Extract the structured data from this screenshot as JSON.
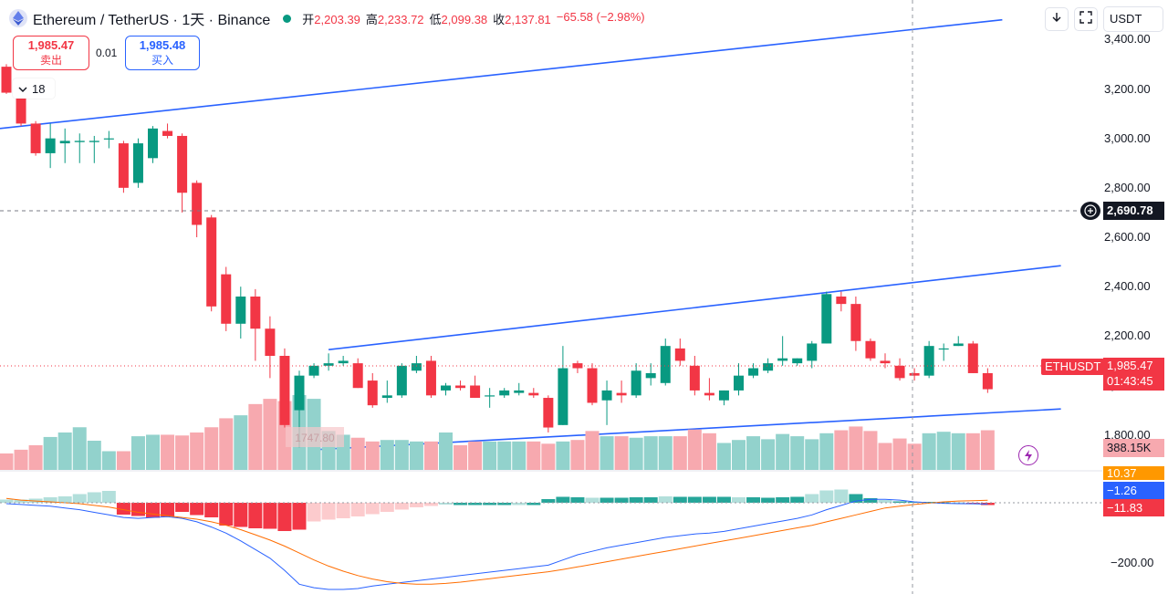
{
  "header": {
    "title": "Ethereum / TetherUS · 1天 · Binance",
    "open_label": "开",
    "open": "2,203.39",
    "high_label": "高",
    "high": "2,233.72",
    "low_label": "低",
    "low": "2,099.38",
    "close_label": "收",
    "close": "2,137.81",
    "change": "−65.58 (−2.98%)"
  },
  "trade": {
    "sell_price": "1,985.47",
    "sell_label": "卖出",
    "qty": "0.01",
    "buy_price": "1,985.48",
    "buy_label": "买入"
  },
  "collapse_count": "18",
  "toolbar": {
    "currency": "USDT"
  },
  "price_axis": {
    "ticks": [
      "3,400.00",
      "3,200.00",
      "3,000.00",
      "2,800.00",
      "2,600.00",
      "2,400.00",
      "2,200.00",
      "2,000.00",
      "1,800.00"
    ],
    "tick_values": [
      3400,
      3200,
      3000,
      2800,
      2600,
      2400,
      2200,
      2000,
      1800
    ],
    "crosshair_price": "2,690.78",
    "last_price": "1,985.47",
    "countdown": "01:43:45",
    "symbol_tag": "ETHUSDT",
    "low_marker": "1747.80"
  },
  "volume": {
    "last_label": "388.15K"
  },
  "macd": {
    "label_orange": "10.37",
    "label_blue": "−1.26",
    "label_red": "−11.83",
    "tick": "−200.00"
  },
  "colors": {
    "up": "#089981",
    "down": "#f23645",
    "trend": "#2962ff",
    "signal": "#ff6d00"
  },
  "chart_data": {
    "type": "candlestick",
    "symbol": "ETHUSDT",
    "exchange": "Binance",
    "interval": "1天",
    "ylim": [
      1640,
      3560
    ],
    "candles": [
      [
        3290,
        3300,
        3180,
        3185
      ],
      [
        3180,
        3200,
        3050,
        3060
      ],
      [
        3060,
        3070,
        2930,
        2940
      ],
      [
        2940,
        3060,
        2880,
        3000
      ],
      [
        2980,
        3040,
        2900,
        2990
      ],
      [
        2985,
        3020,
        2900,
        2990
      ],
      [
        2985,
        3010,
        2900,
        2990
      ],
      [
        3000,
        3030,
        2960,
        3000
      ],
      [
        2980,
        2990,
        2780,
        2800
      ],
      [
        2820,
        3000,
        2800,
        2980
      ],
      [
        2920,
        3050,
        2900,
        3040
      ],
      [
        3030,
        3060,
        3000,
        3010
      ],
      [
        3010,
        3020,
        2700,
        2780
      ],
      [
        2820,
        2830,
        2600,
        2650
      ],
      [
        2680,
        2690,
        2300,
        2320
      ],
      [
        2450,
        2480,
        2220,
        2250
      ],
      [
        2250,
        2400,
        2190,
        2360
      ],
      [
        2360,
        2390,
        2100,
        2230
      ],
      [
        2230,
        2280,
        2030,
        2120
      ],
      [
        2120,
        2150,
        1830,
        1840
      ],
      [
        1900,
        2060,
        1750,
        2040
      ],
      [
        2040,
        2090,
        2030,
        2080
      ],
      [
        2080,
        2130,
        2060,
        2090
      ],
      [
        2090,
        2120,
        2080,
        2100
      ],
      [
        2090,
        2110,
        1990,
        1990
      ],
      [
        2020,
        2050,
        1910,
        1920
      ],
      [
        1950,
        2020,
        1930,
        1960
      ],
      [
        1960,
        2090,
        1950,
        2080
      ],
      [
        2060,
        2120,
        2050,
        2090
      ],
      [
        2100,
        2120,
        1950,
        1960
      ],
      [
        1980,
        2010,
        1960,
        2000
      ],
      [
        2000,
        2020,
        1980,
        1990
      ],
      [
        2000,
        2040,
        1950,
        1950
      ],
      [
        1960,
        1990,
        1910,
        1960
      ],
      [
        1960,
        1990,
        1950,
        1980
      ],
      [
        1970,
        2010,
        1960,
        1980
      ],
      [
        1970,
        1990,
        1950,
        1960
      ],
      [
        1950,
        1960,
        1810,
        1830
      ],
      [
        1840,
        2160,
        1840,
        2070
      ],
      [
        2090,
        2100,
        2050,
        2070
      ],
      [
        2070,
        2090,
        1920,
        1930
      ],
      [
        1940,
        2020,
        1840,
        1980
      ],
      [
        1970,
        2020,
        1930,
        1960
      ],
      [
        1960,
        2090,
        1950,
        2060
      ],
      [
        2030,
        2090,
        2000,
        2050
      ],
      [
        2010,
        2190,
        2000,
        2160
      ],
      [
        2150,
        2190,
        2080,
        2100
      ],
      [
        2080,
        2120,
        1960,
        1980
      ],
      [
        1970,
        2030,
        1940,
        1960
      ],
      [
        1940,
        1980,
        1920,
        1980
      ],
      [
        1980,
        2090,
        1960,
        2040
      ],
      [
        2040,
        2090,
        2030,
        2070
      ],
      [
        2060,
        2110,
        2050,
        2090
      ],
      [
        2100,
        2200,
        2080,
        2110
      ],
      [
        2090,
        2110,
        2080,
        2110
      ],
      [
        2100,
        2180,
        2070,
        2170
      ],
      [
        2170,
        2380,
        2170,
        2370
      ],
      [
        2360,
        2380,
        2300,
        2330
      ],
      [
        2330,
        2360,
        2140,
        2180
      ],
      [
        2180,
        2190,
        2100,
        2110
      ],
      [
        2100,
        2130,
        2070,
        2090
      ],
      [
        2080,
        2110,
        2020,
        2030
      ],
      [
        2050,
        2070,
        2020,
        2040
      ],
      [
        2040,
        2180,
        2030,
        2160
      ],
      [
        2150,
        2170,
        2100,
        2150
      ],
      [
        2160,
        2200,
        2160,
        2170
      ],
      [
        2170,
        2180,
        2050,
        2050
      ],
      [
        2050,
        2070,
        1970,
        1985
      ]
    ],
    "volumes": [
      22,
      27,
      33,
      44,
      50,
      57,
      39,
      25,
      25,
      45,
      47,
      47,
      46,
      50,
      57,
      69,
      73,
      88,
      95,
      92,
      100,
      95,
      52,
      47,
      43,
      38,
      40,
      40,
      38,
      38,
      50,
      33,
      38,
      38,
      38,
      38,
      38,
      35,
      38,
      40,
      52,
      45,
      45,
      43,
      45,
      45,
      45,
      54,
      49,
      36,
      40,
      45,
      41,
      48,
      45,
      41,
      49,
      53,
      58,
      52,
      36,
      42,
      35,
      49,
      51,
      49,
      49,
      53
    ],
    "macd_hist": [
      7,
      7,
      9,
      12,
      14,
      19,
      23,
      26,
      26,
      29,
      33,
      30,
      20,
      27,
      32,
      50,
      53,
      56,
      57,
      62,
      59,
      41,
      37,
      34,
      30,
      25,
      20,
      15,
      10,
      7,
      4,
      5,
      5,
      5,
      5,
      5,
      5,
      8,
      13,
      12,
      11,
      11,
      11,
      12,
      12,
      14,
      13,
      13,
      13,
      13,
      12,
      12,
      11,
      12,
      13,
      19,
      27,
      29,
      19,
      10,
      6,
      3,
      2,
      2,
      1,
      1,
      -2,
      -5
    ],
    "macd_line": [
      -5,
      -10,
      -15,
      -20,
      -30,
      -40,
      -55,
      -70,
      -85,
      -90,
      -85,
      -80,
      -90,
      -110,
      -140,
      -175,
      -220,
      -270,
      -320,
      -390,
      -470,
      -490,
      -500,
      -500,
      -495,
      -480,
      -470,
      -460,
      -450,
      -440,
      -430,
      -420,
      -410,
      -400,
      -390,
      -380,
      -370,
      -360,
      -330,
      -300,
      -280,
      -260,
      -245,
      -230,
      -215,
      -200,
      -190,
      -180,
      -175,
      -165,
      -150,
      -135,
      -120,
      -105,
      -90,
      -70,
      -40,
      -15,
      10,
      20,
      20,
      15,
      5,
      0,
      -3,
      -5,
      -6,
      -8
    ],
    "macd_signal": [
      25,
      15,
      10,
      5,
      0,
      -5,
      -15,
      -25,
      -40,
      -55,
      -65,
      -75,
      -85,
      -95,
      -110,
      -130,
      -155,
      -185,
      -215,
      -250,
      -290,
      -330,
      -365,
      -395,
      -420,
      -440,
      -455,
      -465,
      -470,
      -470,
      -465,
      -458,
      -448,
      -438,
      -428,
      -418,
      -408,
      -398,
      -385,
      -370,
      -355,
      -340,
      -325,
      -310,
      -295,
      -280,
      -265,
      -250,
      -235,
      -220,
      -205,
      -190,
      -175,
      -160,
      -145,
      -130,
      -110,
      -90,
      -70,
      -50,
      -30,
      -20,
      -10,
      -2,
      5,
      10,
      12,
      14
    ],
    "trendlines": [
      {
        "from": {
          "index": 0,
          "price": 3040
        },
        "to": {
          "index": 68,
          "price": 3480
        }
      },
      {
        "from": {
          "index": 22,
          "price": 2145
        },
        "to": {
          "index": 72,
          "price": 2485
        }
      },
      {
        "from": {
          "index": 21,
          "price": 1740
        },
        "to": {
          "index": 72,
          "price": 1905
        }
      }
    ]
  }
}
